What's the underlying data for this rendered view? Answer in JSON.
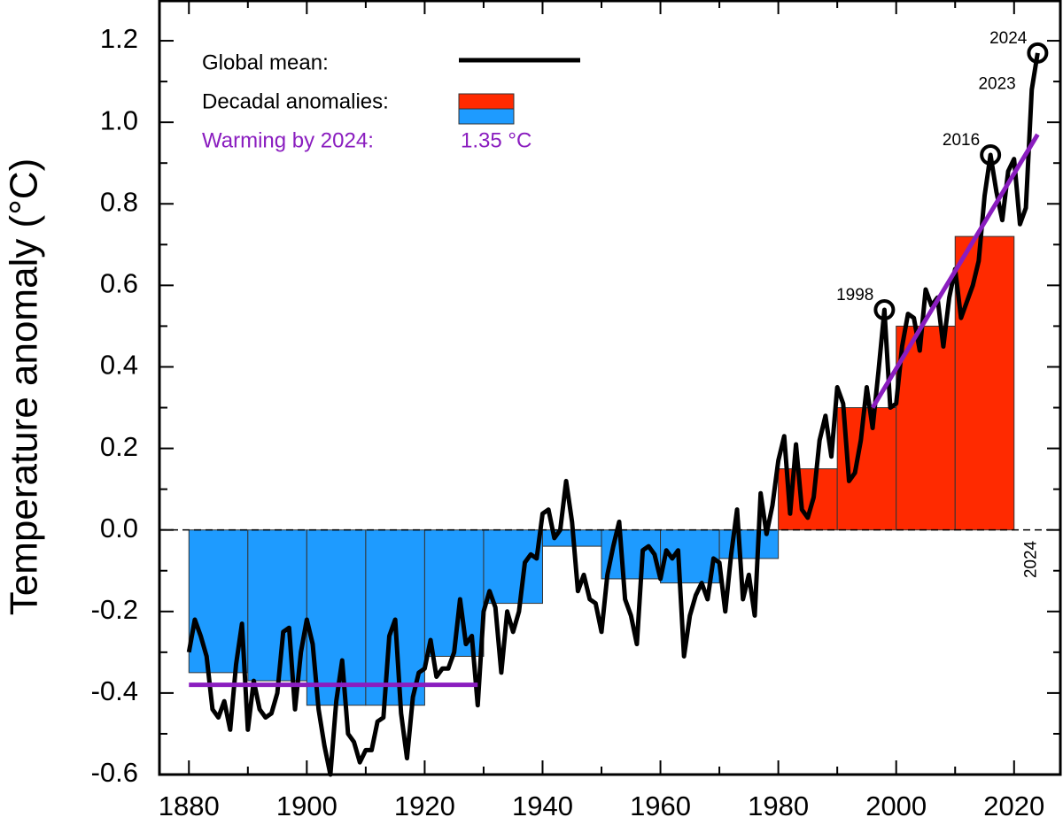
{
  "chart_data": {
    "type": "combo",
    "y_label": "Temperature anomaly (°C)",
    "xlim": [
      1875,
      2028
    ],
    "ylim": [
      -0.6,
      1.3
    ],
    "xticks": [
      1880,
      1900,
      1920,
      1940,
      1960,
      1980,
      2000,
      2020
    ],
    "xminorticks": [
      1890,
      1910,
      1930,
      1950,
      1970,
      1990,
      2010
    ],
    "yticks": [
      -0.6,
      -0.4,
      -0.2,
      {
        "value": 0,
        "label": "0.0"
      },
      0.2,
      0.4,
      0.6,
      0.8,
      {
        "value": 1,
        "label": "1.0"
      },
      1.2
    ],
    "yminorticks": [
      -0.5,
      -0.3,
      -0.1,
      0.1,
      0.3,
      0.5,
      0.7,
      0.9,
      1.1
    ],
    "series": [
      {
        "name": "Global mean:",
        "color": "#000000",
        "x": [
          1880,
          1881,
          1882,
          1883,
          1884,
          1885,
          1886,
          1887,
          1888,
          1889,
          1890,
          1891,
          1892,
          1893,
          1894,
          1895,
          1896,
          1897,
          1898,
          1899,
          1900,
          1901,
          1902,
          1903,
          1904,
          1905,
          1906,
          1907,
          1908,
          1909,
          1910,
          1911,
          1912,
          1913,
          1914,
          1915,
          1916,
          1917,
          1918,
          1919,
          1920,
          1921,
          1922,
          1923,
          1924,
          1925,
          1926,
          1927,
          1928,
          1929,
          1930,
          1931,
          1932,
          1933,
          1934,
          1935,
          1936,
          1937,
          1938,
          1939,
          1940,
          1941,
          1942,
          1943,
          1944,
          1945,
          1946,
          1947,
          1948,
          1949,
          1950,
          1951,
          1952,
          1953,
          1954,
          1955,
          1956,
          1957,
          1958,
          1959,
          1960,
          1961,
          1962,
          1963,
          1964,
          1965,
          1966,
          1967,
          1968,
          1969,
          1970,
          1971,
          1972,
          1973,
          1974,
          1975,
          1976,
          1977,
          1978,
          1979,
          1980,
          1981,
          1982,
          1983,
          1984,
          1985,
          1986,
          1987,
          1988,
          1989,
          1990,
          1991,
          1992,
          1993,
          1994,
          1995,
          1996,
          1997,
          1998,
          1999,
          2000,
          2001,
          2002,
          2003,
          2004,
          2005,
          2006,
          2007,
          2008,
          2009,
          2010,
          2011,
          2012,
          2013,
          2014,
          2015,
          2016,
          2017,
          2018,
          2019,
          2020,
          2021,
          2022,
          2023,
          2024
        ],
        "values": [
          -0.3,
          -0.22,
          -0.26,
          -0.31,
          -0.44,
          -0.46,
          -0.42,
          -0.49,
          -0.33,
          -0.23,
          -0.49,
          -0.37,
          -0.44,
          -0.46,
          -0.45,
          -0.4,
          -0.25,
          -0.24,
          -0.44,
          -0.3,
          -0.22,
          -0.28,
          -0.44,
          -0.53,
          -0.6,
          -0.42,
          -0.32,
          -0.5,
          -0.52,
          -0.57,
          -0.54,
          -0.54,
          -0.47,
          -0.46,
          -0.26,
          -0.22,
          -0.45,
          -0.56,
          -0.41,
          -0.35,
          -0.34,
          -0.27,
          -0.36,
          -0.34,
          -0.34,
          -0.3,
          -0.17,
          -0.28,
          -0.26,
          -0.43,
          -0.2,
          -0.15,
          -0.19,
          -0.35,
          -0.2,
          -0.25,
          -0.2,
          -0.08,
          -0.06,
          -0.07,
          0.04,
          0.05,
          -0.02,
          0.0,
          0.12,
          0.02,
          -0.15,
          -0.11,
          -0.17,
          -0.18,
          -0.25,
          -0.11,
          -0.04,
          0.02,
          -0.17,
          -0.21,
          -0.28,
          -0.05,
          -0.04,
          -0.06,
          -0.12,
          -0.05,
          -0.07,
          -0.05,
          -0.31,
          -0.21,
          -0.16,
          -0.13,
          -0.17,
          -0.07,
          -0.08,
          -0.2,
          -0.06,
          0.05,
          -0.17,
          -0.11,
          -0.21,
          0.09,
          -0.01,
          0.06,
          0.17,
          0.23,
          0.04,
          0.21,
          0.05,
          0.03,
          0.08,
          0.22,
          0.28,
          0.18,
          0.35,
          0.31,
          0.12,
          0.14,
          0.22,
          0.35,
          0.25,
          0.39,
          0.54,
          0.3,
          0.31,
          0.45,
          0.53,
          0.52,
          0.44,
          0.59,
          0.55,
          0.57,
          0.45,
          0.57,
          0.64,
          0.52,
          0.56,
          0.6,
          0.66,
          0.82,
          0.92,
          0.83,
          0.76,
          0.88,
          0.91,
          0.75,
          0.79,
          1.08,
          1.17
        ]
      }
    ],
    "decadal": {
      "name": "Decadal anomalies:",
      "colors": {
        "positive": "#ff2a00",
        "negative": "#1e9bff"
      },
      "edges": [
        1880,
        1890,
        1900,
        1910,
        1920,
        1930,
        1940,
        1950,
        1960,
        1970,
        1980,
        1990,
        2000,
        2010,
        2020
      ],
      "values": [
        -0.35,
        -0.37,
        -0.43,
        -0.43,
        -0.31,
        -0.18,
        -0.04,
        -0.12,
        -0.13,
        -0.07,
        0.15,
        0.3,
        0.5,
        0.72
      ]
    },
    "trend": {
      "name": "Warming by 2024:",
      "value_text": "1.35 °C",
      "color": "#8a1dbf",
      "lines": [
        {
          "x": [
            1880,
            1929
          ],
          "values": [
            -0.38,
            -0.38
          ]
        },
        {
          "x": [
            1996,
            2024
          ],
          "values": [
            0.3,
            0.97
          ]
        }
      ]
    },
    "annotations": [
      {
        "text": "1998",
        "x": 1998,
        "circle": true
      },
      {
        "text": "2016",
        "x": 2016,
        "circle": true
      },
      {
        "text": "2024",
        "x": 2024,
        "circle": true
      },
      {
        "text": "2023",
        "x": 2023,
        "circle": false
      }
    ],
    "vertical_label": {
      "text": "2024",
      "x": 2023
    }
  }
}
